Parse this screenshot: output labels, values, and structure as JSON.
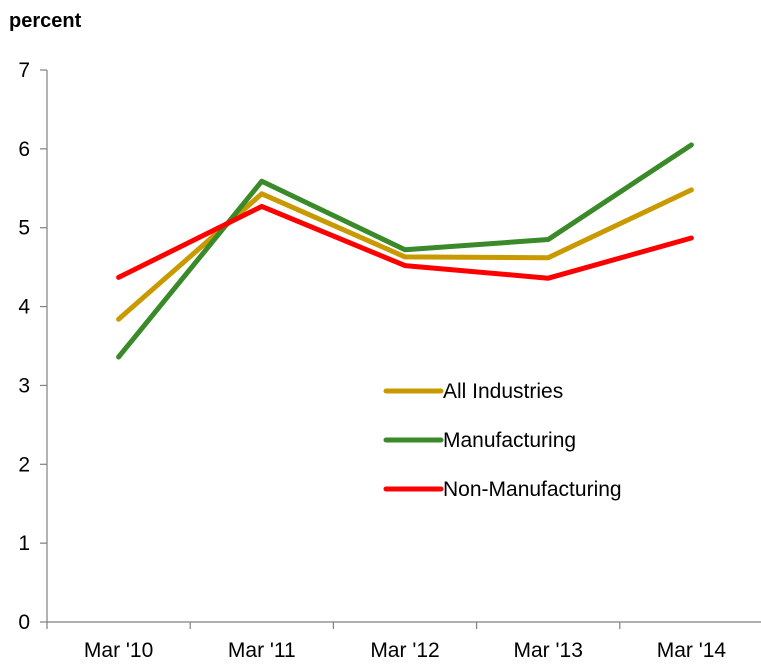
{
  "chart_data": {
    "type": "line",
    "unit_label": "percent",
    "categories": [
      "Mar '10",
      "Mar '11",
      "Mar '12",
      "Mar '13",
      "Mar '14"
    ],
    "ylim": [
      0,
      7
    ],
    "yticks": [
      "0",
      "1",
      "2",
      "3",
      "4",
      "5",
      "6",
      "7"
    ],
    "grid": false,
    "legend_position": "center-right",
    "series": [
      {
        "name": "All Industries",
        "color": "#c89a00",
        "values": [
          3.84,
          5.43,
          4.63,
          4.62,
          5.48
        ]
      },
      {
        "name": "Manufacturing",
        "color": "#3a8a2a",
        "values": [
          3.36,
          5.59,
          4.72,
          4.85,
          6.05
        ]
      },
      {
        "name": "Non-Manufacturing",
        "color": "#ff0000",
        "values": [
          4.37,
          5.27,
          4.52,
          4.36,
          4.87
        ]
      }
    ]
  }
}
